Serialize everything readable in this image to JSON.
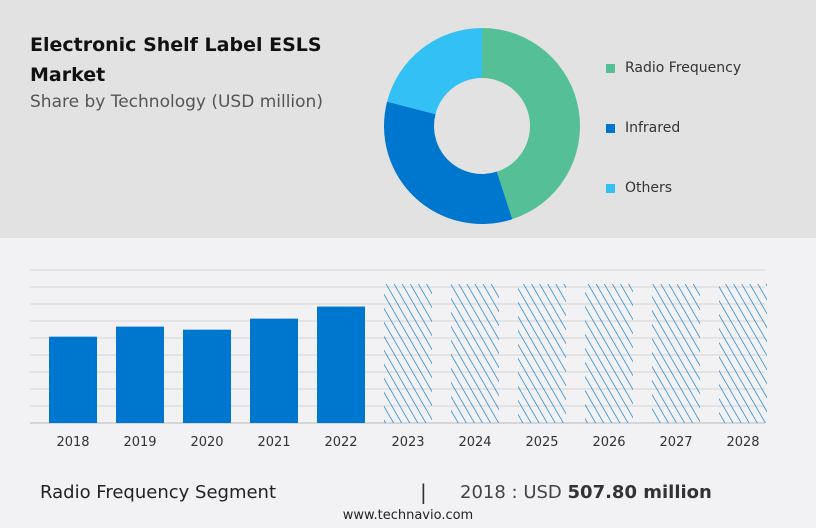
{
  "header": {
    "title": "Electronic Shelf Label ESLS Market",
    "subtitle": "Share by Technology (USD million)"
  },
  "colors": {
    "radio_frequency": "#55bf95",
    "infrared": "#0077cf",
    "others": "#33c1f5",
    "bar": "#0077cf"
  },
  "chart_data": [
    {
      "type": "pie",
      "style": "donut",
      "slices": [
        {
          "name": "Radio Frequency",
          "share": 45,
          "color": "#55bf95"
        },
        {
          "name": "Infrared",
          "share": 34,
          "color": "#0077cf"
        },
        {
          "name": "Others",
          "share": 21,
          "color": "#33c1f5"
        }
      ],
      "legend": "right"
    },
    {
      "type": "bar",
      "categories": [
        "2018",
        "2019",
        "2020",
        "2021",
        "2022",
        "2023",
        "2024",
        "2025",
        "2026",
        "2027",
        "2028"
      ],
      "values": [
        507.8,
        null,
        null,
        null,
        null,
        null,
        null,
        null,
        null,
        null,
        null
      ],
      "forecast": [
        false,
        false,
        false,
        false,
        false,
        true,
        true,
        true,
        true,
        true,
        true
      ],
      "ylim": [
        0,
        900
      ],
      "grid": true,
      "xlabel": "",
      "ylabel": ""
    }
  ],
  "footer": {
    "segment": "Radio Frequency Segment",
    "separator": "|",
    "prefix": "2018 : USD",
    "value": "507.80 million",
    "url": "www.technavio.com"
  }
}
